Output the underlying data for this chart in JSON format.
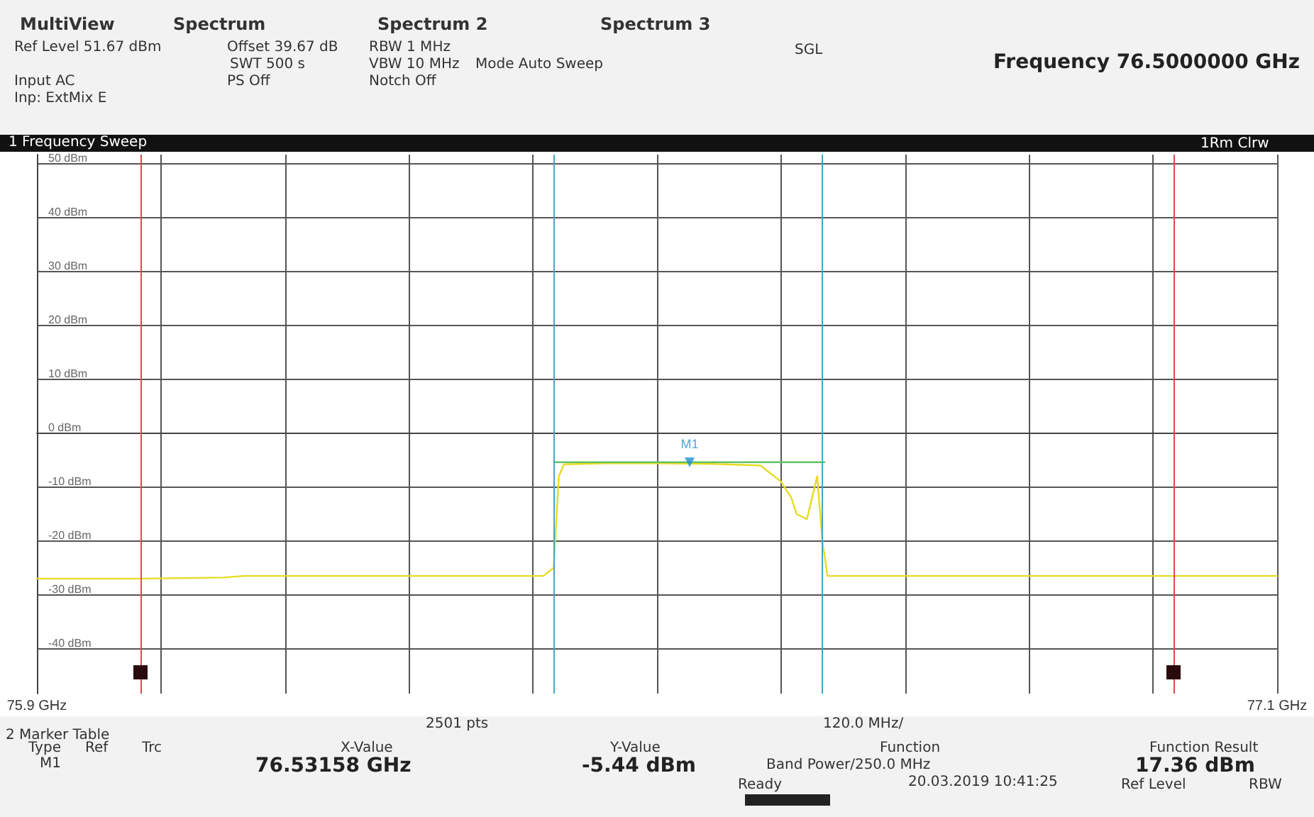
{
  "chart_data": {
    "type": "line",
    "title": "1 Frequency Sweep",
    "annotations": [
      "MultiView",
      "Spectrum",
      "Spectrum 2",
      "Spectrum 3",
      "Ref Level 51.67 dBm",
      "Offset 39.67 dB",
      "SWT 500 s",
      "RBW 1 MHz",
      "VBW 10 MHz",
      "Mode Auto Sweep",
      "Input AC",
      "PS Off",
      "Notch Off",
      "Inp: ExtMix E",
      "SGL",
      "Frequency 76.5000000 GHz",
      "1Rm Clrw",
      "2501 pts",
      "120.0 MHz/",
      "2 Marker Table",
      "Type",
      "Ref",
      "Trc",
      "X-Value",
      "Y-Value",
      "Function",
      "Function Result",
      "M1",
      "76.53158 GHz",
      "-5.44 dBm",
      "Band Power/250.0 MHz",
      "17.36 dBm",
      "Ready",
      "20.03.2019 10:41:25",
      "Ref Level",
      "RBW"
    ],
    "series": [
      {
        "color": "#e6dc20",
        "x": [
          75.9,
          76.0,
          76.08,
          76.1,
          76.2,
          76.3,
          76.39,
          76.4,
          76.405,
          76.41,
          76.45,
          76.5,
          76.55,
          76.6,
          76.62,
          76.63,
          76.635,
          76.645,
          76.65,
          76.655,
          76.66,
          76.665,
          76.8,
          77.0,
          77.1
        ],
        "values": [
          -27.0,
          -27.0,
          -26.8,
          -26.5,
          -26.5,
          -26.5,
          -26.5,
          -25,
          -8,
          -5.8,
          -5.6,
          -5.6,
          -5.7,
          -6,
          -9,
          -12,
          -15,
          -16,
          -12,
          -8,
          -20,
          -26.5,
          -26.5,
          -26.5,
          -26.5
        ]
      },
      {
        "color": "#66c266",
        "x": [
          76.401,
          76.662
        ],
        "values": [
          -5.4,
          -5.4
        ]
      },
      {
        "name": "M1",
        "type": "scatter",
        "marker": "triangle",
        "color": "#2090d0",
        "x": [
          76.53158
        ],
        "values": [
          -5.44
        ]
      }
    ],
    "xlim": [
      75.9,
      77.1
    ],
    "xticks": [
      {
        "value": 75.9,
        "label": "75.9 GHz"
      },
      {
        "value": 76.02,
        "label": null
      },
      {
        "value": 76.14,
        "label": null
      },
      {
        "value": 76.26,
        "label": null
      },
      {
        "value": 76.38,
        "label": null
      },
      {
        "value": 76.5,
        "label": null
      },
      {
        "value": 76.62,
        "label": null
      },
      {
        "value": 76.74,
        "label": null
      },
      {
        "value": 76.86,
        "label": null
      },
      {
        "value": 76.98,
        "label": null
      },
      {
        "value": 77.1,
        "label": "77.1 GHz"
      }
    ],
    "ylim": [
      -48.33,
      51.67
    ],
    "yticks": [
      {
        "value": 50,
        "label": "50 dBm"
      },
      {
        "value": 40,
        "label": "40 dBm"
      },
      {
        "value": 30,
        "label": "30 dBm"
      },
      {
        "value": 20,
        "label": "20 dBm"
      },
      {
        "value": 10,
        "label": "10 dBm"
      },
      {
        "value": 0,
        "label": "0 dBm"
      },
      {
        "value": -10,
        "label": "-10 dBm"
      },
      {
        "value": -20,
        "label": "-20 dBm"
      },
      {
        "value": -30,
        "label": "-30 dBm"
      },
      {
        "value": -40,
        "label": "-40 dBm"
      }
    ],
    "ref_lines": [
      {
        "axis": "x",
        "value": 76.0,
        "color": "#e04a4a"
      },
      {
        "axis": "x",
        "value": 77.0,
        "color": "#e04a4a"
      },
      {
        "axis": "x",
        "value": 76.401,
        "color": "#40a8c8"
      },
      {
        "axis": "x",
        "value": 76.662,
        "color": "#40a8c8"
      }
    ],
    "grid": true,
    "line_style": "solid",
    "marker": "none",
    "legend": false
  }
}
